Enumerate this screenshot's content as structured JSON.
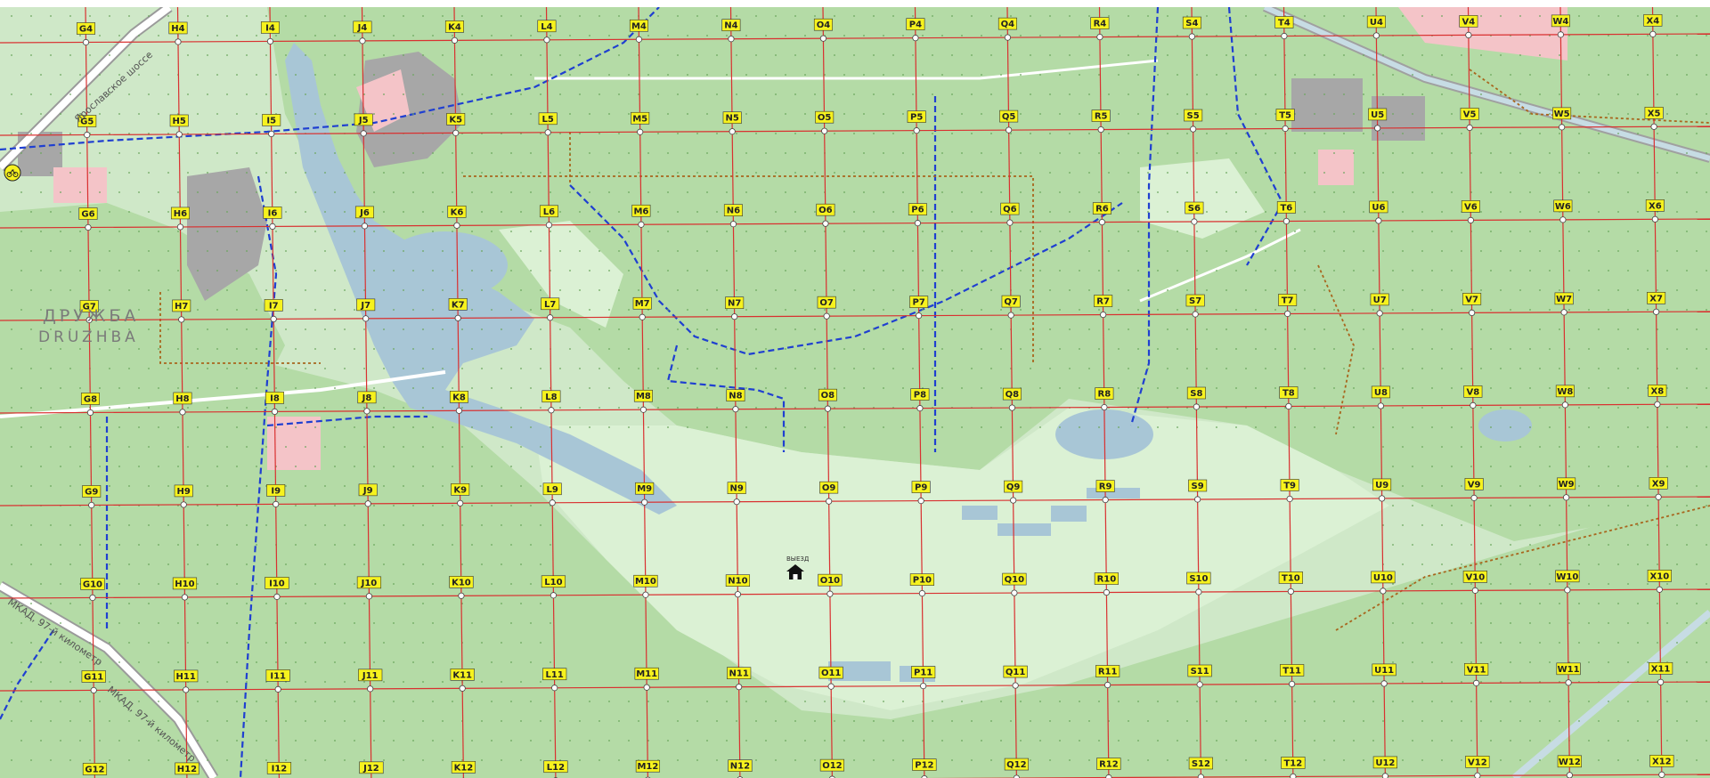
{
  "map": {
    "colors": {
      "background": "#cfe8c8",
      "forest": "#b5dca8",
      "open_field": "#d9f0d2",
      "water": "#a8c6d6",
      "grid_line": "#d93030",
      "trail_blue": "#1f3fd1",
      "trail_brown": "#a8661e",
      "urban_grey": "#a7a7a7",
      "urban_pink": "#f4c4c8",
      "road_white": "#ffffff",
      "label_bg": "#f6f21e"
    },
    "grid": {
      "columns": [
        "G",
        "H",
        "I",
        "J",
        "K",
        "L",
        "M",
        "N",
        "O",
        "P",
        "Q",
        "R",
        "S",
        "T",
        "U",
        "V",
        "W",
        "X"
      ],
      "rows": [
        "4",
        "5",
        "6",
        "7",
        "8",
        "9",
        "10",
        "11",
        "12"
      ]
    },
    "place_labels": {
      "district_cyrillic": "ДРУЖБА",
      "district_latin": "DRUZHBA"
    },
    "road_labels": {
      "yaroslavskoe": "Ярославское шоссе",
      "mkad_bottom": "МКАД, 97-й километр",
      "mkad_left": "МКАД, 97-й километр"
    },
    "feature_labels": {
      "shelter_caption": "ВЫЕЗД"
    },
    "icons": {
      "bike": "bicycle-icon",
      "shelter": "shelter-icon"
    }
  }
}
